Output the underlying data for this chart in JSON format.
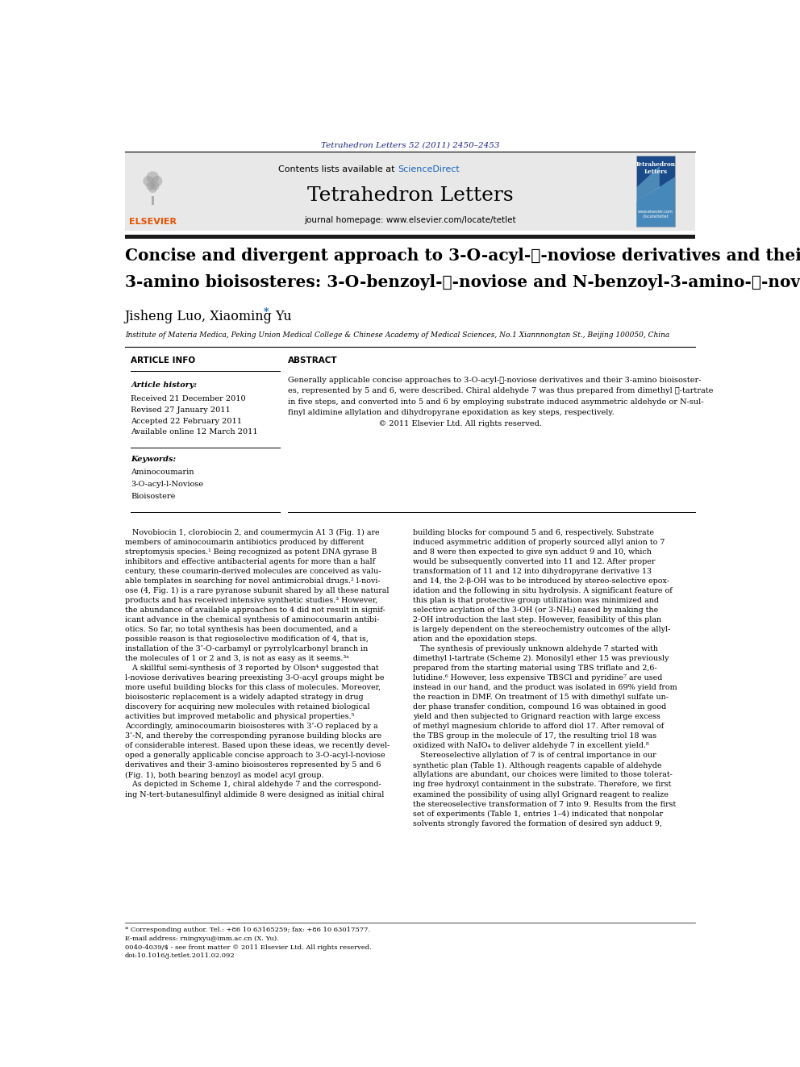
{
  "page_width": 9.92,
  "page_height": 13.23,
  "bg_color": "#ffffff",
  "top_journal_ref": "Tetrahedron Letters 52 (2011) 2450–2453",
  "journal_ref_color": "#1a237e",
  "header_bg": "#e8e8e8",
  "sciencedirect_text": "ScienceDirect",
  "sciencedirect_color": "#1565c0",
  "journal_name": "Tetrahedron Letters",
  "journal_homepage": "journal homepage: www.elsevier.com/locate/tetlet",
  "authors": "Jisheng Luo, Xiaoming Yu",
  "affiliation": "Institute of Materia Medica, Peking Union Medical College & Chinese Academy of Medical Sciences, No.1 Xiannnongtan St., Beijing 100050, China",
  "article_info_header": "ARTICLE INFO",
  "abstract_header": "ABSTRACT",
  "article_history_label": "Article history:",
  "received": "Received 21 December 2010",
  "revised": "Revised 27 January 2011",
  "accepted": "Accepted 22 February 2011",
  "available": "Available online 12 March 2011",
  "keywords_label": "Keywords:",
  "keywords": [
    "Aminocoumarin",
    "3-O-acyl-l-Noviose",
    "Bioisostere"
  ],
  "footer_text1": "* Corresponding author. Tel.: +86 10 63165259; fax: +86 10 63017577.",
  "footer_text2": "E-mail address: rningxyu@imm.ac.cn (X. Yu).",
  "footer_text3": "0040-4039/$ - see front matter © 2011 Elsevier Ltd. All rights reserved.",
  "footer_doi": "doi:10.1016/j.tetlet.2011.02.092",
  "elsevier_color": "#e65100",
  "black_bar_color": "#1a1a1a",
  "col1_lines": [
    "   Novobiocin 1, clorobiocin 2, and coumermycin A1 3 (Fig. 1) are",
    "members of aminocoumarin antibiotics produced by different",
    "streptomysis species.¹ Being recognized as potent DNA gyrase B",
    "inhibitors and effective antibacterial agents for more than a half",
    "century, these coumarin-derived molecules are conceived as valu-",
    "able templates in searching for novel antimicrobial drugs.² l-novi-",
    "ose (4, Fig. 1) is a rare pyranose subunit shared by all these natural",
    "products and has received intensive synthetic studies.³ However,",
    "the abundance of available approaches to 4 did not result in signif-",
    "icant advance in the chemical synthesis of aminocoumarin antibi-",
    "otics. So far, no total synthesis has been documented, and a",
    "possible reason is that regioselective modification of 4, that is,",
    "installation of the 3’-O-carbamyl or pyrrolylcarbonyl branch in",
    "the molecules of 1 or 2 and 3, is not as easy as it seems.³ᵃ",
    "   A skillful semi-synthesis of 3 reported by Olson⁴ suggested that",
    "l-noviose derivatives bearing preexisting 3-O-acyl groups might be",
    "more useful building blocks for this class of molecules. Moreover,",
    "bioisosteric replacement is a widely adapted strategy in drug",
    "discovery for acquiring new molecules with retained biological",
    "activities but improved metabolic and physical properties.⁵",
    "Accordingly, aminocoumarin bioisosteres with 3’-O replaced by a",
    "3’-N, and thereby the corresponding pyranose building blocks are",
    "of considerable interest. Based upon these ideas, we recently devel-",
    "oped a generally applicable concise approach to 3-O-acyl-l-noviose",
    "derivatives and their 3-amino bioisosteres represented by 5 and 6",
    "(Fig. 1), both bearing benzoyl as model acyl group.",
    "   As depicted in Scheme 1, chiral aldehyde 7 and the correspond-",
    "ing N-tert-butanesulfinyl aldimide 8 were designed as initial chiral"
  ],
  "col2_lines": [
    "building blocks for compound 5 and 6, respectively. Substrate",
    "induced asymmetric addition of properly sourced allyl anion to 7",
    "and 8 were then expected to give syn adduct 9 and 10, which",
    "would be subsequently converted into 11 and 12. After proper",
    "transformation of 11 and 12 into dihydropyrane derivative 13",
    "and 14, the 2-β-OH was to be introduced by stereo-selective epox-",
    "idation and the following in situ hydrolysis. A significant feature of",
    "this plan is that protective group utilization was minimized and",
    "selective acylation of the 3-OH (or 3-NH₂) eased by making the",
    "2-OH introduction the last step. However, feasibility of this plan",
    "is largely dependent on the stereochemistry outcomes of the allyl-",
    "ation and the epoxidation steps.",
    "   The synthesis of previously unknown aldehyde 7 started with",
    "dimethyl l-tartrate (Scheme 2). Monosilyl ether 15 was previously",
    "prepared from the starting material using TBS triflate and 2,6-",
    "lutidine.⁶ However, less expensive TBSCl and pyridine⁷ are used",
    "instead in our hand, and the product was isolated in 69% yield from",
    "the reaction in DMF. On treatment of 15 with dimethyl sulfate un-",
    "der phase transfer condition, compound 16 was obtained in good",
    "yield and then subjected to Grignard reaction with large excess",
    "of methyl magnesium chloride to afford diol 17. After removal of",
    "the TBS group in the molecule of 17, the resulting triol 18 was",
    "oxidized with NaIO₄ to deliver aldehyde 7 in excellent yield.⁸",
    "   Stereoselective allylation of 7 is of central importance in our",
    "synthetic plan (Table 1). Although reagents capable of aldehyde",
    "allylations are abundant, our choices were limited to those tolerat-",
    "ing free hydroxyl containment in the substrate. Therefore, we first",
    "examined the possibility of using allyl Grignard reagent to realize",
    "the stereoselective transformation of 7 into 9. Results from the first",
    "set of experiments (Table 1, entries 1–4) indicated that nonpolar",
    "solvents strongly favored the formation of desired syn adduct 9,"
  ]
}
